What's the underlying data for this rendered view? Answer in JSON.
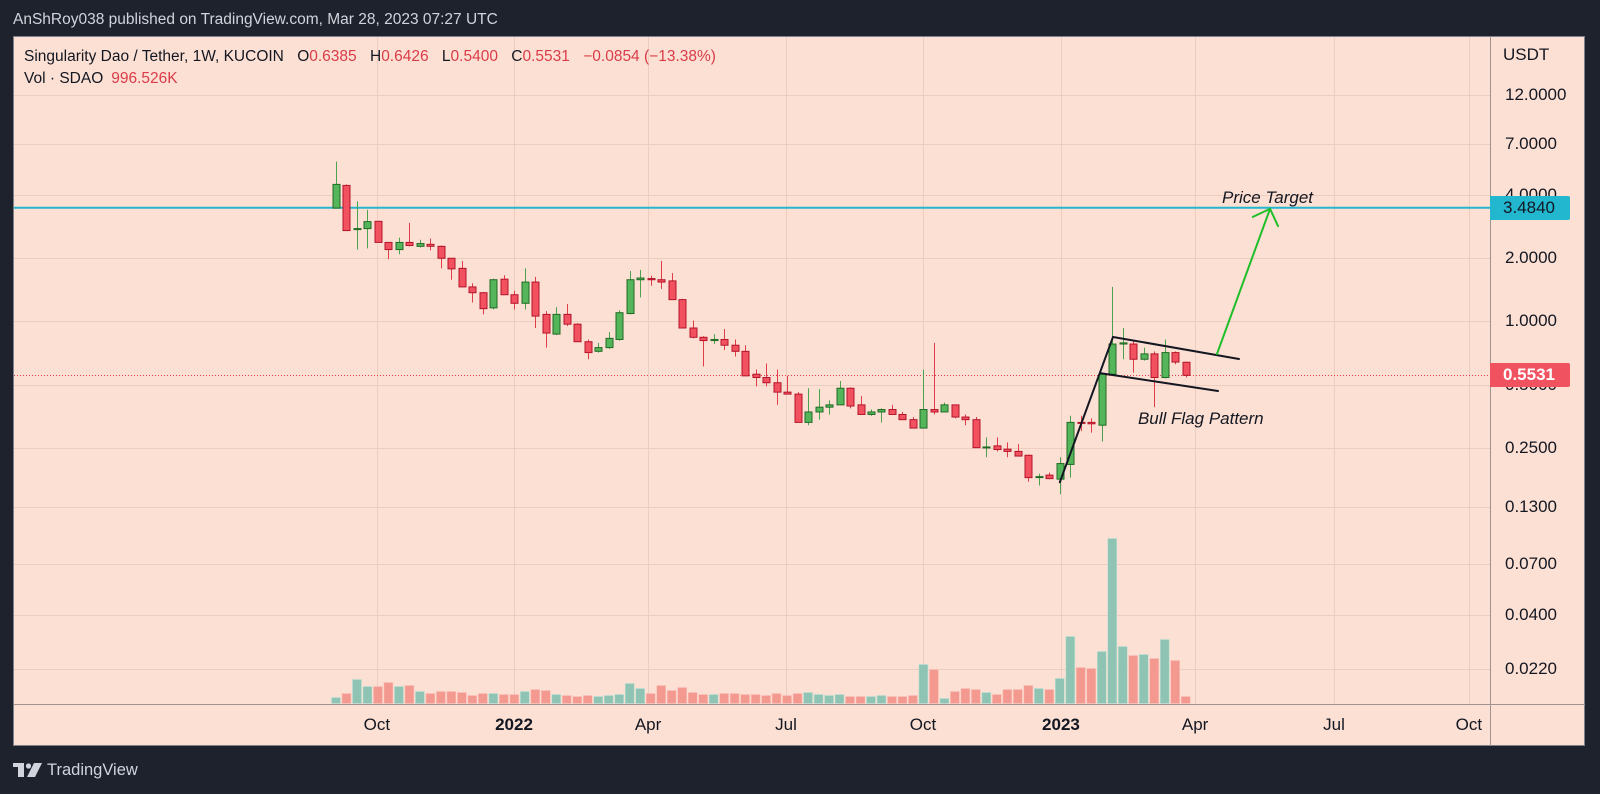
{
  "header": {
    "published_line": "AnShRoy038 published on TradingView.com, Mar 28, 2023 07:27 UTC"
  },
  "legend": {
    "symbol": "Singularity Dao / Tether, 1W, KUCOIN",
    "open_label": "O",
    "open": "0.6385",
    "high_label": "H",
    "high": "0.6426",
    "low_label": "L",
    "low": "0.5400",
    "close_label": "C",
    "close": "0.5531",
    "change": "−0.0854 (−13.38%)",
    "vol_label": "Vol · SDAO",
    "vol_value": "996.526K"
  },
  "price_axis": {
    "currency": "USDT",
    "target_tag": "3.4840",
    "last_tag": "0.5531"
  },
  "footer": {
    "brand": "TradingView"
  },
  "colors": {
    "background": "#fde0d4",
    "grid": "#eecdc1",
    "axis_line": "#a09390",
    "up_body": "#55b55a",
    "up_border": "#1f6b25",
    "up_wick": "#4aa24f",
    "down_body": "#f2525f",
    "down_border": "#b3142a",
    "down_wick": "#e23c4b",
    "vol_up": "#8fc3b3",
    "vol_up_edge": "#bfe0d4",
    "vol_down": "#f4998f",
    "vol_down_edge": "#f8c2ba",
    "target": "#22b6cf",
    "drawing": "#131722",
    "arrow": "#1fbf2a"
  },
  "chart_data": {
    "type": "candlestick",
    "title": "Singularity Dao / Tether, 1W, KUCOIN",
    "ylabel": "USDT",
    "yscale": "log",
    "ylim": [
      0.02,
      13
    ],
    "interval": "1W",
    "price_ticks": [
      {
        "value": 12,
        "label": "12.0000"
      },
      {
        "value": 7,
        "label": "7.0000"
      },
      {
        "value": 4,
        "label": "4.0000"
      },
      {
        "value": 2,
        "label": "2.0000"
      },
      {
        "value": 1,
        "label": "1.0000"
      },
      {
        "value": 0.5,
        "label": "0.5000"
      },
      {
        "value": 0.25,
        "label": "0.2500"
      },
      {
        "value": 0.13,
        "label": "0.1300"
      },
      {
        "value": 0.07,
        "label": "0.0700"
      },
      {
        "value": 0.04,
        "label": "0.0400"
      },
      {
        "value": 0.022,
        "label": "0.0220"
      }
    ],
    "time_ticks": [
      {
        "label": "Oct",
        "pos": 3.9,
        "bold": false
      },
      {
        "label": "2022",
        "pos": 16.97,
        "bold": true
      },
      {
        "label": "Apr",
        "pos": 29.75,
        "bold": false
      },
      {
        "label": "Jul",
        "pos": 42.9,
        "bold": false
      },
      {
        "label": "Oct",
        "pos": 55.96,
        "bold": false
      },
      {
        "label": "2023",
        "pos": 69.11,
        "bold": true
      },
      {
        "label": "Apr",
        "pos": 81.9,
        "bold": false
      },
      {
        "label": "Jul",
        "pos": 95.14,
        "bold": false
      },
      {
        "label": "Oct",
        "pos": 108.0,
        "bold": false
      }
    ],
    "ohlc_fields": [
      "open",
      "high",
      "low",
      "close"
    ],
    "candles": [
      [
        3.47,
        5.78,
        3.45,
        4.5
      ],
      [
        4.45,
        4.5,
        2.7,
        2.71
      ],
      [
        2.75,
        3.74,
        2.2,
        2.77
      ],
      [
        2.77,
        3.4,
        2.23,
        2.99
      ],
      [
        3.0,
        3.02,
        2.38,
        2.38
      ],
      [
        2.38,
        2.38,
        1.98,
        2.2
      ],
      [
        2.2,
        2.51,
        2.09,
        2.38
      ],
      [
        2.38,
        2.95,
        2.28,
        2.3
      ],
      [
        2.28,
        2.45,
        2.25,
        2.35
      ],
      [
        2.33,
        2.48,
        2.18,
        2.28
      ],
      [
        2.28,
        2.3,
        1.79,
        2.0
      ],
      [
        2.0,
        2.0,
        1.58,
        1.78
      ],
      [
        1.79,
        1.94,
        1.46,
        1.46
      ],
      [
        1.46,
        1.52,
        1.23,
        1.37
      ],
      [
        1.37,
        1.38,
        1.08,
        1.15
      ],
      [
        1.16,
        1.6,
        1.14,
        1.58
      ],
      [
        1.59,
        1.66,
        1.34,
        1.34
      ],
      [
        1.34,
        1.4,
        1.14,
        1.22
      ],
      [
        1.22,
        1.79,
        1.14,
        1.54
      ],
      [
        1.54,
        1.63,
        0.93,
        1.06
      ],
      [
        1.08,
        1.12,
        0.75,
        0.88
      ],
      [
        0.87,
        1.17,
        0.86,
        1.08
      ],
      [
        1.08,
        1.21,
        0.95,
        0.97
      ],
      [
        0.97,
        0.98,
        0.8,
        0.8
      ],
      [
        0.8,
        0.82,
        0.66,
        0.71
      ],
      [
        0.72,
        0.79,
        0.71,
        0.75
      ],
      [
        0.75,
        0.89,
        0.74,
        0.83
      ],
      [
        0.82,
        1.13,
        0.81,
        1.1
      ],
      [
        1.09,
        1.74,
        1.08,
        1.58
      ],
      [
        1.58,
        1.76,
        1.3,
        1.61
      ],
      [
        1.6,
        1.65,
        1.48,
        1.58
      ],
      [
        1.58,
        1.94,
        1.43,
        1.54
      ],
      [
        1.56,
        1.7,
        1.27,
        1.27
      ],
      [
        1.27,
        1.28,
        0.93,
        0.93
      ],
      [
        0.93,
        1.01,
        0.83,
        0.84
      ],
      [
        0.84,
        0.85,
        0.61,
        0.81
      ],
      [
        0.81,
        0.87,
        0.78,
        0.82
      ],
      [
        0.82,
        0.92,
        0.73,
        0.77
      ],
      [
        0.77,
        0.82,
        0.68,
        0.72
      ],
      [
        0.72,
        0.77,
        0.55,
        0.55
      ],
      [
        0.56,
        0.59,
        0.49,
        0.54
      ],
      [
        0.54,
        0.63,
        0.49,
        0.51
      ],
      [
        0.51,
        0.59,
        0.4,
        0.46
      ],
      [
        0.46,
        0.55,
        0.45,
        0.45
      ],
      [
        0.45,
        0.46,
        0.33,
        0.33
      ],
      [
        0.33,
        0.48,
        0.32,
        0.37
      ],
      [
        0.37,
        0.475,
        0.34,
        0.39
      ],
      [
        0.39,
        0.42,
        0.36,
        0.4
      ],
      [
        0.4,
        0.52,
        0.4,
        0.48
      ],
      [
        0.48,
        0.485,
        0.385,
        0.395
      ],
      [
        0.4,
        0.44,
        0.36,
        0.36
      ],
      [
        0.36,
        0.38,
        0.355,
        0.37
      ],
      [
        0.37,
        0.385,
        0.33,
        0.38
      ],
      [
        0.38,
        0.4,
        0.36,
        0.36
      ],
      [
        0.36,
        0.37,
        0.34,
        0.34
      ],
      [
        0.34,
        0.35,
        0.31,
        0.31
      ],
      [
        0.31,
        0.59,
        0.31,
        0.38
      ],
      [
        0.38,
        0.79,
        0.36,
        0.37
      ],
      [
        0.37,
        0.41,
        0.37,
        0.4
      ],
      [
        0.4,
        0.4,
        0.345,
        0.35
      ],
      [
        0.35,
        0.36,
        0.32,
        0.34
      ],
      [
        0.34,
        0.35,
        0.25,
        0.25
      ],
      [
        0.25,
        0.28,
        0.225,
        0.252
      ],
      [
        0.255,
        0.28,
        0.24,
        0.245
      ],
      [
        0.246,
        0.265,
        0.225,
        0.24
      ],
      [
        0.24,
        0.26,
        0.228,
        0.228
      ],
      [
        0.23,
        0.232,
        0.172,
        0.18
      ],
      [
        0.18,
        0.188,
        0.165,
        0.182
      ],
      [
        0.185,
        0.19,
        0.177,
        0.178
      ],
      [
        0.177,
        0.225,
        0.15,
        0.21
      ],
      [
        0.208,
        0.355,
        0.18,
        0.33
      ],
      [
        0.33,
        0.355,
        0.3,
        0.329
      ],
      [
        0.33,
        0.345,
        0.295,
        0.325
      ],
      [
        0.32,
        0.57,
        0.267,
        0.56
      ],
      [
        0.56,
        1.46,
        0.56,
        0.78
      ],
      [
        0.78,
        0.93,
        0.66,
        0.79
      ],
      [
        0.78,
        0.82,
        0.57,
        0.66
      ],
      [
        0.66,
        0.75,
        0.65,
        0.7
      ],
      [
        0.7,
        0.72,
        0.39,
        0.54
      ],
      [
        0.54,
        0.82,
        0.535,
        0.71
      ],
      [
        0.71,
        0.72,
        0.625,
        0.64
      ],
      [
        0.6385,
        0.6426,
        0.54,
        0.5531
      ]
    ],
    "volume_k": [
      852,
      1420,
      3408,
      2414,
      2414,
      2982,
      2414,
      2556,
      1704,
      1420,
      1704,
      1704,
      1562,
      1136,
      1420,
      1420,
      1278,
      1278,
      1704,
      1988,
      1846,
      1278,
      1136,
      994,
      1136,
      994,
      1136,
      1278,
      2840,
      2130,
      1420,
      2556,
      1846,
      2272,
      1562,
      1278,
      1278,
      1420,
      1420,
      1278,
      1278,
      1136,
      1420,
      1136,
      1420,
      1562,
      1278,
      1136,
      1278,
      994,
      994,
      994,
      1136,
      994,
      994,
      1136,
      5538,
      4828,
      710,
      1704,
      2130,
      1988,
      1562,
      1278,
      1988,
      1988,
      2556,
      2130,
      1988,
      3550,
      9514,
      5112,
      4970,
      7384,
      23430,
      8094,
      6816,
      6958,
      6390,
      9088,
      6106,
      996.526
    ],
    "last_price": 0.5531,
    "target_price": 3.484,
    "drawings": {
      "flag_pole": [
        [
          69.0,
          0.171
        ],
        [
          74.07,
          0.843
        ]
      ],
      "flag_upper": [
        [
          74.07,
          0.843
        ],
        [
          86.08,
          0.662
        ]
      ],
      "flag_lower": [
        [
          72.83,
          0.567
        ],
        [
          84.08,
          0.466
        ]
      ],
      "target_arrow": [
        [
          83.98,
          0.699
        ],
        [
          89.04,
          3.44
        ]
      ]
    },
    "annotations": [
      {
        "id": "price-target-label",
        "text": "Price Target",
        "at": [
          84.46,
          3.67
        ]
      },
      {
        "id": "bull-flag-label",
        "text": "Bull Flag Pattern",
        "at": [
          76.45,
          0.324
        ]
      }
    ]
  }
}
